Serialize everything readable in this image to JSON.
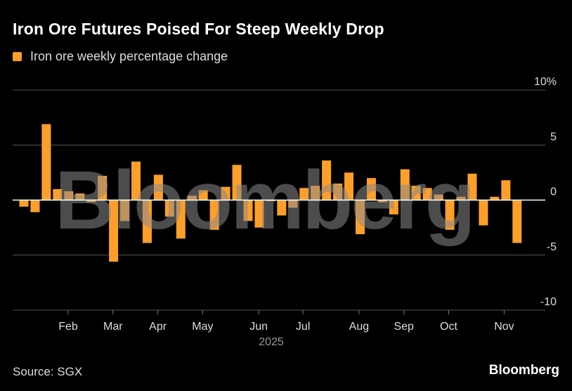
{
  "chart_data": {
    "type": "bar",
    "title": "Iron Ore Futures Poised For Steep Weekly Drop",
    "legend": [
      {
        "name": "Iron ore weekly percentage change",
        "color": "#ff9f2a"
      }
    ],
    "legend_placement": "top-left",
    "series": [
      {
        "name": "Iron ore weekly percentage change",
        "values": [
          -0.6,
          -1.1,
          6.9,
          1.0,
          0.8,
          0.6,
          -0.2,
          2.2,
          -5.6,
          -1.9,
          3.5,
          -3.9,
          2.3,
          -1.5,
          -3.5,
          0.4,
          0.9,
          -2.7,
          1.2,
          3.2,
          -1.9,
          -2.5,
          -0.1,
          -1.4,
          -0.7,
          1.1,
          1.3,
          3.6,
          1.5,
          2.5,
          -3.1,
          2.0,
          -0.2,
          -1.3,
          2.8,
          1.3,
          1.1,
          0.5,
          -2.7,
          0.3,
          2.4,
          -2.3,
          0.3,
          1.8,
          -3.9
        ]
      }
    ],
    "x_ticks": [
      "Feb",
      "Mar",
      "Apr",
      "May",
      "Jun",
      "Jul",
      "Aug",
      "Sep",
      "Oct",
      "Nov"
    ],
    "x_year_label": "2025",
    "y_ticks": [
      {
        "value": 10,
        "label": "10%"
      },
      {
        "value": 5,
        "label": "5"
      },
      {
        "value": 0,
        "label": "0"
      },
      {
        "value": -5,
        "label": "-5"
      },
      {
        "value": -10,
        "label": "-10"
      }
    ],
    "ylim": [
      -10,
      10
    ],
    "y_axis_side": "right",
    "grid": true,
    "colors": {
      "bar": "#ff9f2a",
      "grid": "#555555",
      "zero_line": "#ffffff",
      "background": "#000000"
    }
  },
  "source": "Source: SGX",
  "brand": "Bloomberg",
  "watermark": "Bloomberg"
}
